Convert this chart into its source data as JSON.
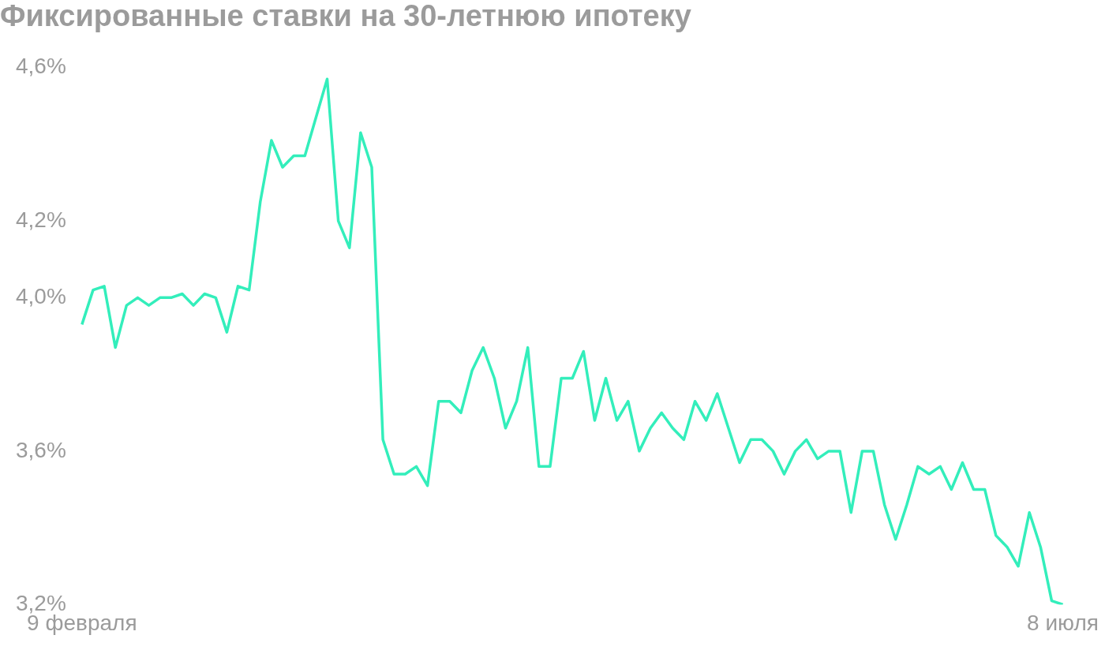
{
  "chart_data": {
    "type": "line",
    "title": "Фиксированные ставки на 30-летнюю ипотеку",
    "categories": [
      "9 февраля",
      null,
      null,
      null,
      null,
      null,
      null,
      null,
      null,
      null,
      null,
      null,
      null,
      null,
      null,
      null,
      null,
      null,
      null,
      null,
      null,
      null,
      null,
      null,
      null,
      null,
      null,
      null,
      null,
      null,
      null,
      null,
      null,
      null,
      null,
      null,
      null,
      null,
      null,
      null,
      null,
      null,
      null,
      null,
      null,
      null,
      null,
      null,
      null,
      null,
      null,
      null,
      null,
      null,
      null,
      null,
      null,
      null,
      null,
      null,
      null,
      null,
      null,
      null,
      null,
      null,
      null,
      null,
      null,
      null,
      null,
      null,
      null,
      null,
      null,
      null,
      null,
      null,
      null,
      null,
      null,
      null,
      null,
      null,
      null,
      null,
      null,
      null,
      "8 июля"
    ],
    "series": [
      {
        "color": "#33eebb",
        "values": [
          3.93,
          4.02,
          4.03,
          3.87,
          3.98,
          4.0,
          3.98,
          4.0,
          4.0,
          4.01,
          3.98,
          4.01,
          4.0,
          3.91,
          4.03,
          4.02,
          4.25,
          4.41,
          4.34,
          4.37,
          4.37,
          4.47,
          4.57,
          4.2,
          4.13,
          4.43,
          4.34,
          3.63,
          3.54,
          3.54,
          3.56,
          3.51,
          3.73,
          3.73,
          3.7,
          3.81,
          3.87,
          3.79,
          3.66,
          3.73,
          3.87,
          3.56,
          3.56,
          3.79,
          3.79,
          3.86,
          3.68,
          3.79,
          3.68,
          3.73,
          3.6,
          3.66,
          3.7,
          3.66,
          3.63,
          3.73,
          3.68,
          3.75,
          3.66,
          3.57,
          3.63,
          3.63,
          3.6,
          3.54,
          3.6,
          3.63,
          3.58,
          3.6,
          3.6,
          3.44,
          3.6,
          3.6,
          3.46,
          3.37,
          3.46,
          3.56,
          3.54,
          3.56,
          3.5,
          3.57,
          3.5,
          3.5,
          3.38,
          3.35,
          3.3,
          3.44,
          3.35,
          3.21,
          3.2
        ]
      }
    ],
    "ylim": [
      3.2,
      4.6
    ],
    "yticks": [
      {
        "value": 3.2,
        "label": "3,2%"
      },
      {
        "value": 3.6,
        "label": "3,6%"
      },
      {
        "value": 4.0,
        "label": "4,0%"
      },
      {
        "value": 4.2,
        "label": "4,2%"
      },
      {
        "value": 4.6,
        "label": "4,6%"
      }
    ],
    "grid": false,
    "legend": false,
    "marker": "none",
    "line_style": "solid"
  }
}
